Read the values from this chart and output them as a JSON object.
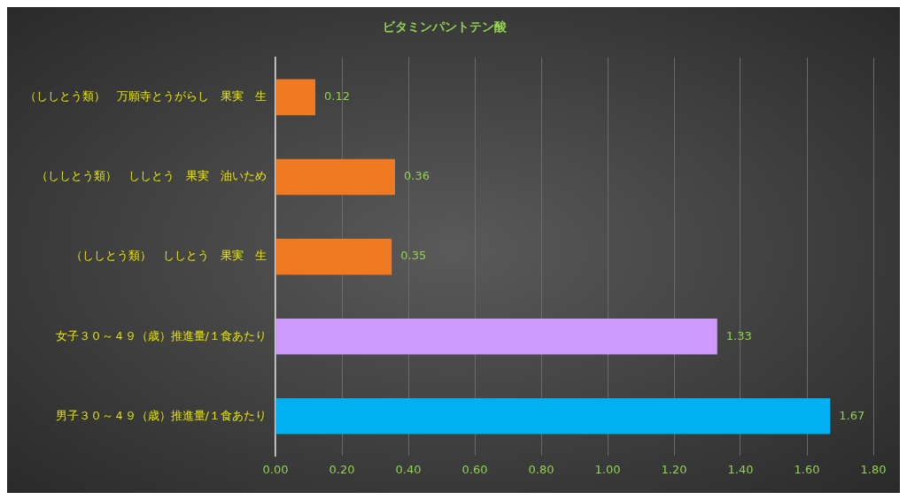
{
  "chart_data": {
    "type": "bar",
    "orientation": "horizontal",
    "title": "ビタミンパントテン酸",
    "categories": [
      "（ししとう類）　万願寺とうがらし　果実　生",
      "（ししとう類）　ししとう　果実　油いため",
      "（ししとう類）　ししとう　果実　生",
      "女子３０～４９（歳）推進量/１食あたり",
      "男子３０～４９（歳）推進量/１食あたり"
    ],
    "values": [
      0.12,
      0.36,
      0.35,
      1.33,
      1.67
    ],
    "colors": [
      "#f07a22",
      "#f07a22",
      "#f07a22",
      "#cc99ff",
      "#00b0f0"
    ],
    "xlim": [
      0,
      1.8
    ],
    "xticks": [
      {
        "value": 0,
        "label": "0.00"
      },
      {
        "value": 0.2,
        "label": "0.20"
      },
      {
        "value": 0.4,
        "label": "0.40"
      },
      {
        "value": 0.6,
        "label": "0.60"
      },
      {
        "value": 0.8,
        "label": "0.80"
      },
      {
        "value": 1,
        "label": "1.00"
      },
      {
        "value": 1.2,
        "label": "1.20"
      },
      {
        "value": 1.4,
        "label": "1.40"
      },
      {
        "value": 1.6,
        "label": "1.60"
      },
      {
        "value": 1.8,
        "label": "1.80"
      }
    ],
    "grid": "x",
    "legend": false,
    "data_labels": true
  }
}
